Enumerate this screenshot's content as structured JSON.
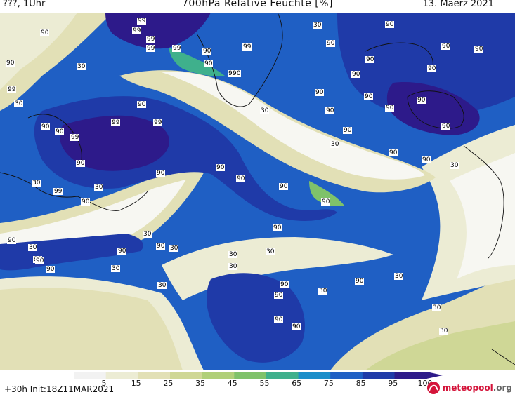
{
  "header": {
    "left": "???, 1Uhr",
    "title": "700hPa Relative Feuchte [%]",
    "date": "13. Maerz 2021"
  },
  "footer": {
    "init": "+30h  Init:18Z11MAR2021",
    "logo": "meteopool",
    "logo_suffix": ".org"
  },
  "legend": {
    "ticks": [
      "5",
      "15",
      "25",
      "35",
      "45",
      "55",
      "65",
      "75",
      "85",
      "95",
      "100"
    ],
    "colors": [
      "#f2f2f2",
      "#ececd4",
      "#e2e0b6",
      "#cfd796",
      "#b0cf78",
      "#7fc26a",
      "#3fb08c",
      "#1d8fc9",
      "#1f5fc4",
      "#1f3aa8",
      "#2d1a8a"
    ]
  },
  "map_labels": [
    {
      "text": "99"
    },
    {
      "text": "99"
    },
    {
      "text": "99"
    },
    {
      "text": "99"
    },
    {
      "text": "90"
    },
    {
      "text": "99"
    },
    {
      "text": "90"
    },
    {
      "text": "99"
    },
    {
      "text": "90"
    },
    {
      "text": "99"
    },
    {
      "text": "90"
    },
    {
      "text": "30"
    },
    {
      "text": "90"
    },
    {
      "text": "90"
    },
    {
      "text": "90"
    },
    {
      "text": "90"
    },
    {
      "text": "30"
    },
    {
      "text": "90"
    },
    {
      "text": "99"
    },
    {
      "text": "90"
    },
    {
      "text": "90"
    },
    {
      "text": "90"
    },
    {
      "text": "90"
    },
    {
      "text": "30"
    },
    {
      "text": "90"
    },
    {
      "text": "90"
    },
    {
      "text": "30"
    },
    {
      "text": "90"
    },
    {
      "text": "90"
    },
    {
      "text": "90"
    },
    {
      "text": "90"
    },
    {
      "text": "99"
    },
    {
      "text": "99"
    },
    {
      "text": "90"
    },
    {
      "text": "99"
    },
    {
      "text": "90"
    },
    {
      "text": "90"
    },
    {
      "text": "30"
    },
    {
      "text": "90"
    },
    {
      "text": "90"
    },
    {
      "text": "30"
    },
    {
      "text": "90"
    },
    {
      "text": "90"
    },
    {
      "text": "30"
    },
    {
      "text": "90"
    },
    {
      "text": "30"
    },
    {
      "text": "99"
    },
    {
      "text": "90"
    },
    {
      "text": "30"
    },
    {
      "text": "90"
    },
    {
      "text": "90"
    },
    {
      "text": "90"
    },
    {
      "text": "30"
    },
    {
      "text": "90"
    },
    {
      "text": "30"
    },
    {
      "text": "90"
    },
    {
      "text": "90"
    },
    {
      "text": "90"
    },
    {
      "text": "30"
    },
    {
      "text": "90"
    },
    {
      "text": "30"
    },
    {
      "text": "30"
    },
    {
      "text": "99"
    },
    {
      "text": "30"
    },
    {
      "text": "90"
    },
    {
      "text": "90"
    },
    {
      "text": "30"
    },
    {
      "text": "90"
    },
    {
      "text": "90"
    },
    {
      "text": "90"
    },
    {
      "text": "30"
    },
    {
      "text": "30"
    },
    {
      "text": "90"
    },
    {
      "text": "30"
    },
    {
      "text": "30"
    }
  ]
}
